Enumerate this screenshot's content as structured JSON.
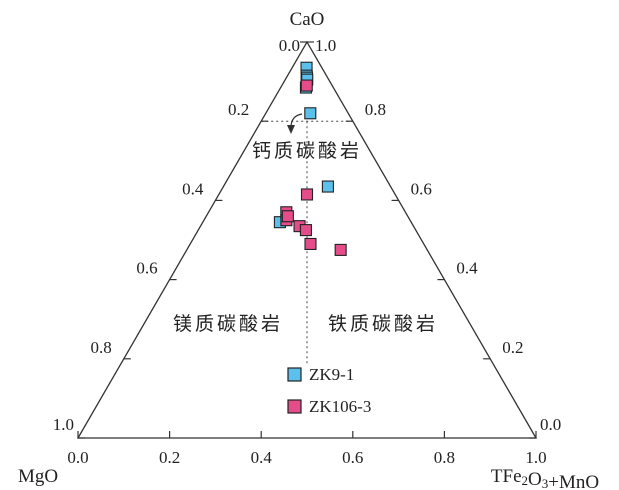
{
  "chart_data": {
    "type": "scatter",
    "subtype": "ternary",
    "vertices": {
      "top": "CaO",
      "left": "MgO",
      "right": "TFe2O3+MnO"
    },
    "axes": {
      "left_edge_ticks": [
        "0.0",
        "0.2",
        "0.4",
        "0.6",
        "0.8",
        "1.0"
      ],
      "right_edge_ticks": [
        "1.0",
        "0.8",
        "0.6",
        "0.4",
        "0.2",
        "0.0"
      ],
      "bottom_edge_ticks": [
        "0.0",
        "0.2",
        "0.4",
        "0.6",
        "0.8",
        "1.0"
      ]
    },
    "fields": {
      "calcio": "钙质碳酸岩",
      "magnesio": "镁质碳酸岩",
      "ferro": "铁质碳酸岩"
    },
    "boundaries": {
      "cao_line": 0.8,
      "divide_fraction": 0.5
    },
    "series": [
      {
        "name": "ZK9-1",
        "color": "#5bc0eb",
        "points": [
          {
            "x": 0.485,
            "y": 0.935
          },
          {
            "x": 0.49,
            "y": 0.915
          },
          {
            "x": 0.5,
            "y": 0.91
          },
          {
            "x": 0.505,
            "y": 0.905
          },
          {
            "x": 0.48,
            "y": 0.885
          },
          {
            "x": 0.54,
            "y": 0.82
          },
          {
            "x": 0.625,
            "y": 0.635
          },
          {
            "x": 0.37,
            "y": 0.545
          }
        ]
      },
      {
        "name": "ZK106-3",
        "color": "#e44c8a",
        "points": [
          {
            "x": 0.495,
            "y": 0.89
          },
          {
            "x": 0.5,
            "y": 0.615
          },
          {
            "x": 0.395,
            "y": 0.57
          },
          {
            "x": 0.4,
            "y": 0.55
          },
          {
            "x": 0.405,
            "y": 0.56
          },
          {
            "x": 0.465,
            "y": 0.535
          },
          {
            "x": 0.495,
            "y": 0.525
          },
          {
            "x": 0.515,
            "y": 0.49
          },
          {
            "x": 0.64,
            "y": 0.475
          }
        ]
      }
    ],
    "legend": {
      "placement": "bottom-center",
      "entries": [
        "ZK9-1",
        "ZK106-3"
      ]
    }
  }
}
